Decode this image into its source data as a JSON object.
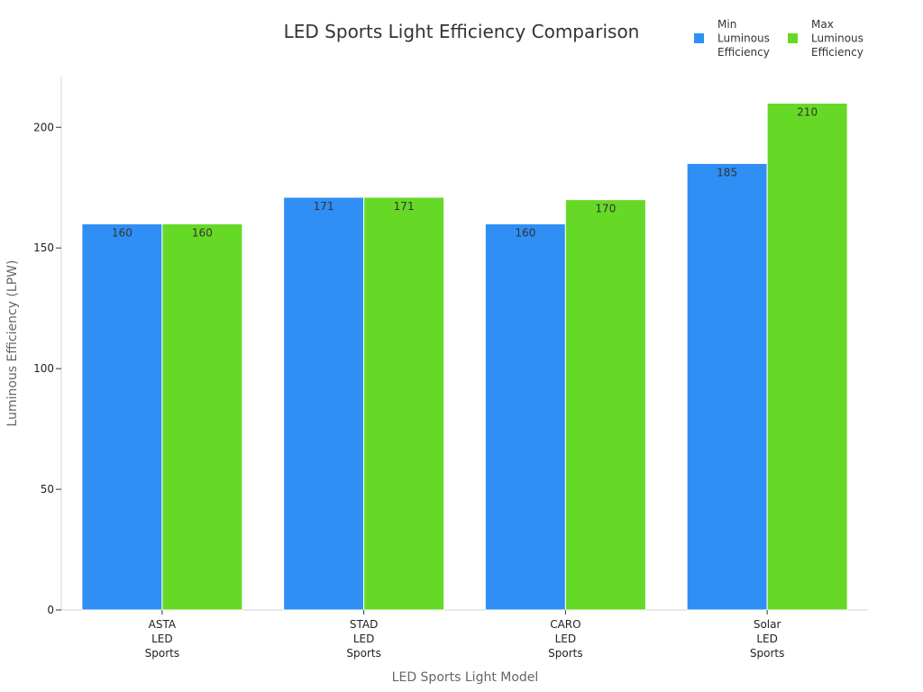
{
  "chart_data": {
    "type": "bar",
    "title": "LED Sports Light Efficiency Comparison",
    "xlabel": "LED Sports Light Model",
    "ylabel": "Luminous Efficiency (LPW)",
    "categories": [
      [
        "ASTA",
        "LED",
        "Sports"
      ],
      [
        "STAD",
        "LED",
        "Sports"
      ],
      [
        "CARO",
        "LED",
        "Sports"
      ],
      [
        "Solar",
        "LED",
        "Sports"
      ]
    ],
    "series": [
      {
        "name": [
          "Min",
          "Luminous",
          "Efficiency"
        ],
        "color": "#2f8ff5",
        "values": [
          160,
          171,
          160,
          185
        ]
      },
      {
        "name": [
          "Max",
          "Luminous",
          "Efficiency"
        ],
        "color": "#66d926",
        "values": [
          160,
          171,
          170,
          210
        ]
      }
    ],
    "ylim": [
      0,
      221
    ],
    "yticks": [
      0,
      50,
      100,
      150,
      200
    ],
    "legend": "top-right",
    "grid": false
  }
}
